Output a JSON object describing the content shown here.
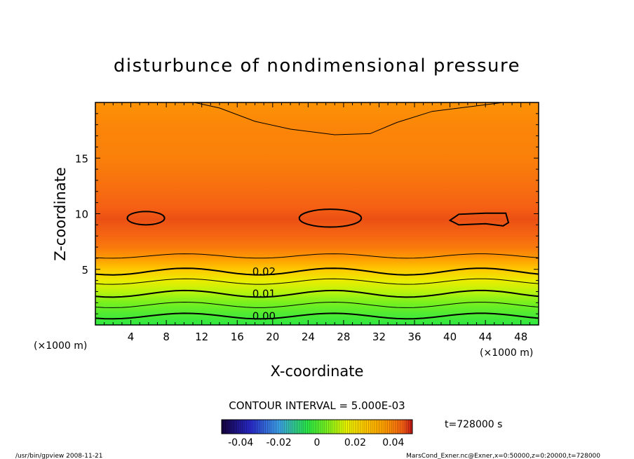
{
  "chart_data": {
    "type": "contour",
    "title": "disturbunce of nondimensional pressure",
    "xlabel": "X-coordinate",
    "ylabel": "Z-coordinate",
    "x_unit": "(×1000 m)",
    "z_unit": "(×1000 m)",
    "xlim": [
      0,
      50
    ],
    "zlim": [
      0,
      20
    ],
    "x_ticks": [
      4,
      8,
      12,
      16,
      20,
      24,
      28,
      32,
      36,
      40,
      44,
      48
    ],
    "z_ticks": [
      5,
      10,
      15
    ],
    "contour_interval_label": "CONTOUR INTERVAL = 5.000E-03",
    "contour_labels": [
      {
        "text": "0.02",
        "x": 17.7,
        "z": 4.8
      },
      {
        "text": "0.01",
        "x": 17.7,
        "z": 2.8
      },
      {
        "text": "0.00",
        "x": 17.7,
        "z": 0.8
      }
    ],
    "field_bands": [
      {
        "z": 20.0,
        "value": 0.037
      },
      {
        "z": 18.0,
        "value": 0.039
      },
      {
        "z": 15.0,
        "value": 0.04
      },
      {
        "z": 12.0,
        "value": 0.043
      },
      {
        "z": 10.5,
        "value": 0.045
      },
      {
        "z": 9.5,
        "value": 0.046
      },
      {
        "z": 8.0,
        "value": 0.044
      },
      {
        "z": 7.0,
        "value": 0.041
      },
      {
        "z": 6.0,
        "value": 0.036
      },
      {
        "z": 5.0,
        "value": 0.025
      },
      {
        "z": 4.0,
        "value": 0.017
      },
      {
        "z": 3.0,
        "value": 0.011
      },
      {
        "z": 2.0,
        "value": 0.005
      },
      {
        "z": 1.0,
        "value": 0.0
      },
      {
        "z": 0.0,
        "value": -0.004
      }
    ],
    "colorbar": {
      "min": -0.05,
      "max": 0.05,
      "tick_values": [
        -0.04,
        -0.02,
        0,
        0.02,
        0.04
      ],
      "tick_labels": [
        "-0.04",
        "-0.02",
        "0",
        "0.02",
        "0.04"
      ]
    },
    "time_label": "t=728000 s"
  },
  "footer": {
    "left": "/usr/bin/gpview  2008-11-21",
    "right": "MarsCond_Exner.nc@Exner,x=0:50000,z=0:20000,t=728000"
  }
}
